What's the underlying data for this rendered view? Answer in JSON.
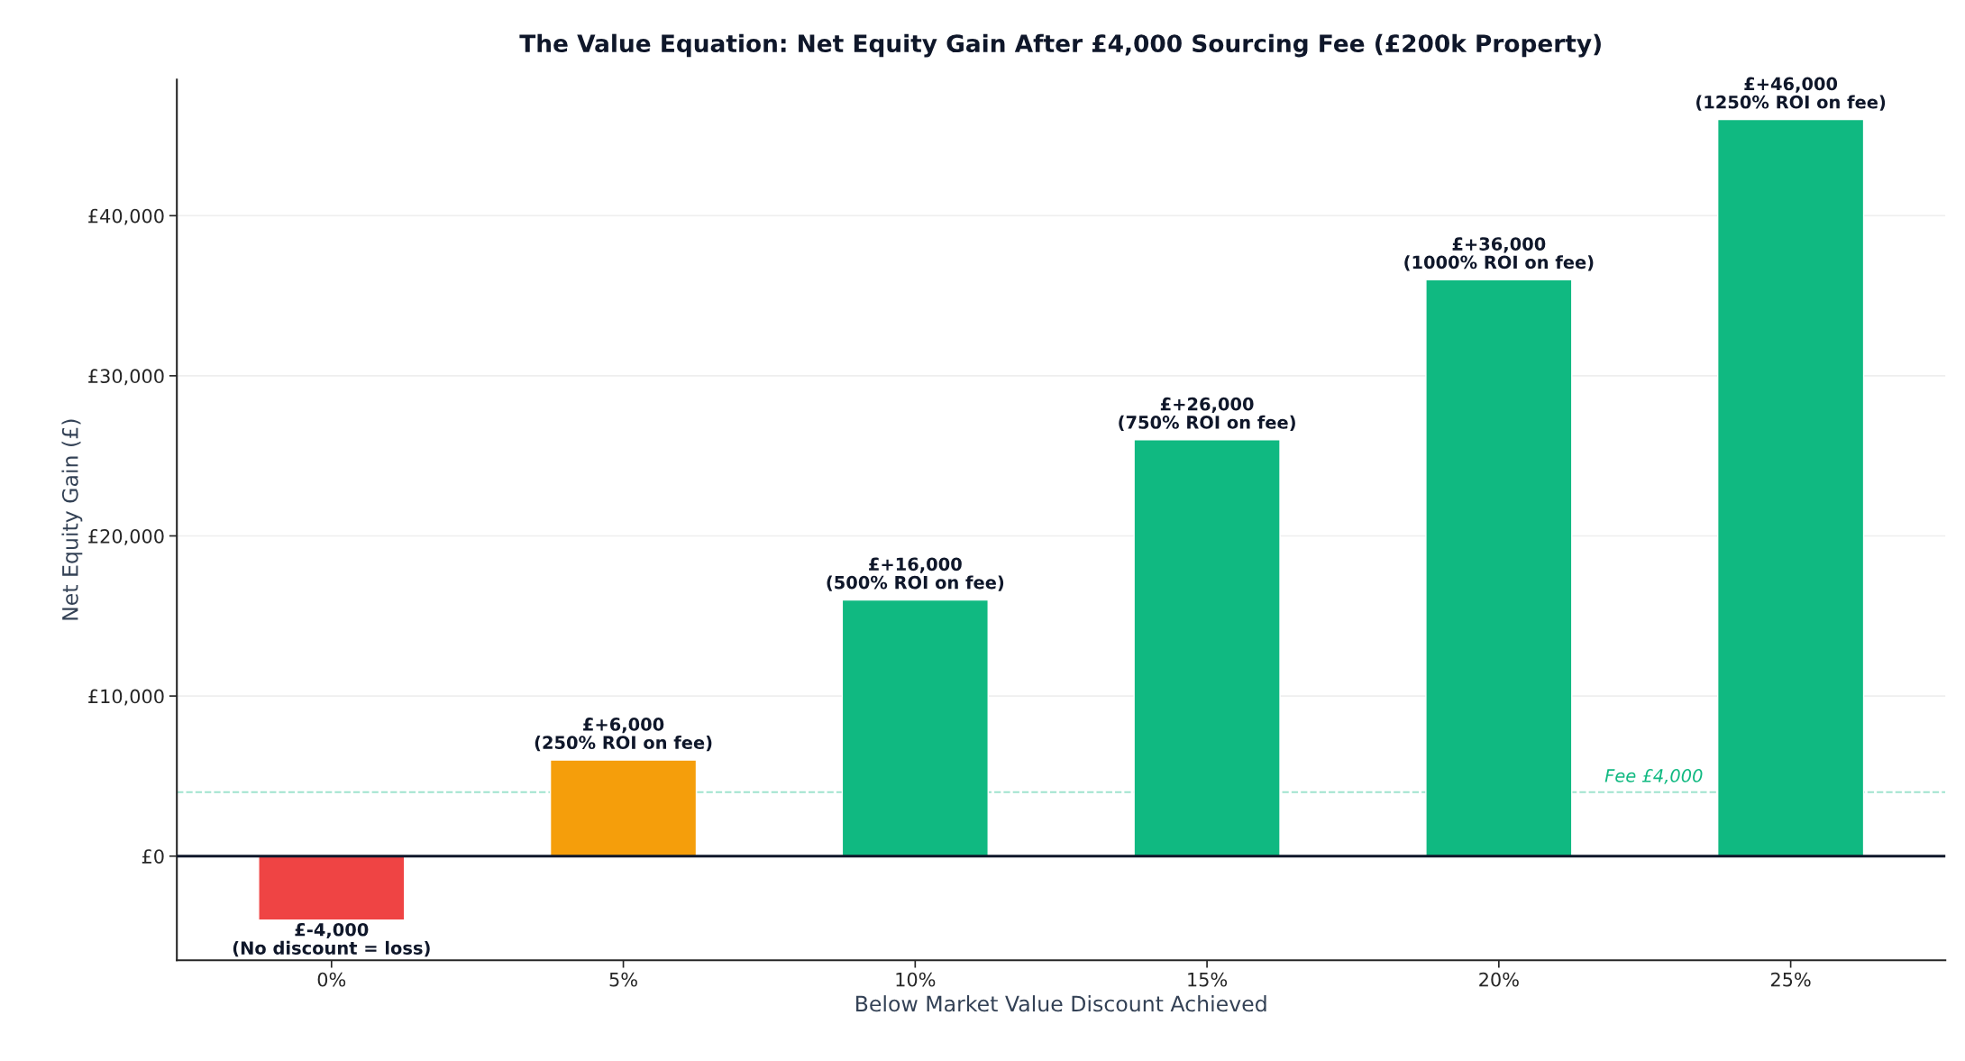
{
  "chart_data": {
    "type": "bar",
    "title": "The Value Equation: Net Equity Gain After £4,000 Sourcing Fee (£200k Property)",
    "xlabel": "Below Market Value Discount Achieved",
    "ylabel": "Net Equity Gain (£)",
    "categories": [
      "0%",
      "5%",
      "10%",
      "15%",
      "20%",
      "25%"
    ],
    "values": [
      -4000,
      6000,
      16000,
      26000,
      36000,
      46000
    ],
    "colors": [
      "#ef4444",
      "#f59e0b",
      "#10b981",
      "#10b981",
      "#10b981",
      "#10b981"
    ],
    "value_labels": [
      "£-4,000\n(No discount = loss)",
      "£+6,000\n(250% ROI on fee)",
      "£+16,000\n(500% ROI on fee)",
      "£+26,000\n(750% ROI on fee)",
      "£+36,000\n(1000% ROI on fee)",
      "£+46,000\n(1250% ROI on fee)"
    ],
    "ylim": [
      -6500,
      48500
    ],
    "yticks": [
      {
        "value": 0,
        "label": "£0"
      },
      {
        "value": 10000,
        "label": "£10,000"
      },
      {
        "value": 20000,
        "label": "£20,000"
      },
      {
        "value": 30000,
        "label": "£30,000"
      },
      {
        "value": 40000,
        "label": "£40,000"
      }
    ],
    "ref_lines": [
      {
        "axis": "y",
        "value": 0,
        "label": null,
        "color": "#0f172a",
        "line_style": "solid"
      },
      {
        "axis": "y",
        "value": 4000,
        "label": "Fee £4,000",
        "color": "#10b981",
        "line_style": "dashed"
      }
    ],
    "grid": "y",
    "legend": false
  }
}
